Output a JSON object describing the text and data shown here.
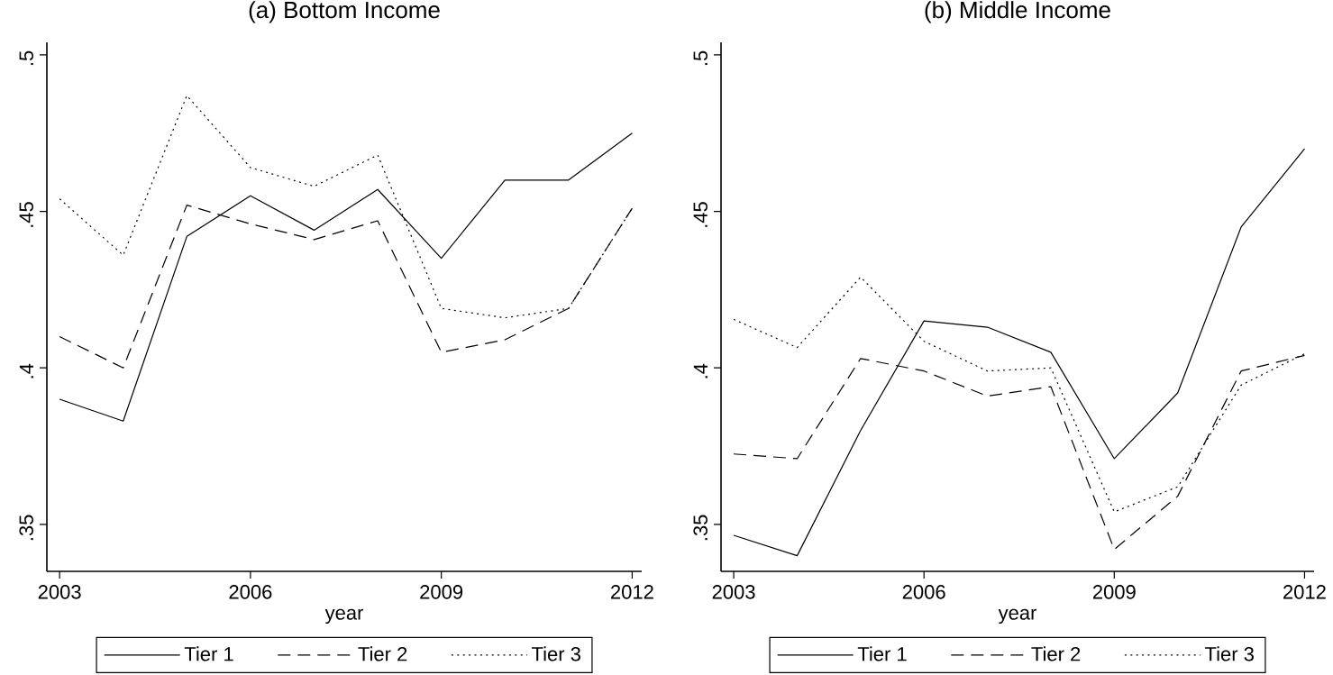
{
  "chart_data": [
    {
      "type": "line",
      "title": "(a) Bottom Income",
      "xlabel": "year",
      "legend": "bottom",
      "x": [
        2003,
        2004,
        2005,
        2006,
        2007,
        2008,
        2009,
        2010,
        2011,
        2012
      ],
      "series": [
        {
          "name": "Tier 1",
          "color": "#000000",
          "line_style": "solid",
          "values": [
            0.39,
            0.383,
            0.442,
            0.455,
            0.444,
            0.457,
            0.435,
            0.46,
            0.46,
            0.475
          ]
        },
        {
          "name": "Tier 2",
          "color": "#000000",
          "line_style": "dashed",
          "values": [
            0.41,
            0.4,
            0.452,
            0.446,
            0.441,
            0.447,
            0.405,
            0.409,
            0.419,
            0.451
          ]
        },
        {
          "name": "Tier 3",
          "color": "#000000",
          "line_style": "dotted",
          "values": [
            0.454,
            0.436,
            0.487,
            0.464,
            0.458,
            0.468,
            0.419,
            0.416,
            0.419,
            0.451
          ]
        }
      ],
      "xlim": [
        2002.8,
        2012.15
      ],
      "ylim": [
        0.335,
        0.504
      ],
      "xticks": [
        2003,
        2006,
        2009,
        2012
      ],
      "yticks": [
        {
          "value": 0.35,
          "label": ".35"
        },
        {
          "value": 0.4,
          "label": ".4"
        },
        {
          "value": 0.45,
          "label": ".45"
        },
        {
          "value": 0.5,
          "label": ".5"
        }
      ]
    },
    {
      "type": "line",
      "title": "(b) Middle Income",
      "xlabel": "year",
      "legend": "bottom",
      "x": [
        2003,
        2004,
        2005,
        2006,
        2007,
        2008,
        2009,
        2010,
        2011,
        2012
      ],
      "series": [
        {
          "name": "Tier 1",
          "color": "#000000",
          "line_style": "solid",
          "values": [
            0.3465,
            0.34,
            0.38,
            0.415,
            0.413,
            0.405,
            0.371,
            0.392,
            0.445,
            0.47
          ]
        },
        {
          "name": "Tier 2",
          "color": "#000000",
          "line_style": "dashed",
          "values": [
            0.3725,
            0.371,
            0.403,
            0.399,
            0.391,
            0.394,
            0.342,
            0.359,
            0.399,
            0.404
          ]
        },
        {
          "name": "Tier 3",
          "color": "#000000",
          "line_style": "dotted",
          "values": [
            0.4155,
            0.4065,
            0.429,
            0.4085,
            0.399,
            0.4,
            0.354,
            0.362,
            0.3945,
            0.4045
          ]
        }
      ],
      "xlim": [
        2002.8,
        2012.15
      ],
      "ylim": [
        0.335,
        0.504
      ],
      "xticks": [
        2003,
        2006,
        2009,
        2012
      ],
      "yticks": [
        {
          "value": 0.35,
          "label": ".35"
        },
        {
          "value": 0.4,
          "label": ".4"
        },
        {
          "value": 0.45,
          "label": ".45"
        },
        {
          "value": 0.5,
          "label": ".5"
        }
      ]
    }
  ]
}
